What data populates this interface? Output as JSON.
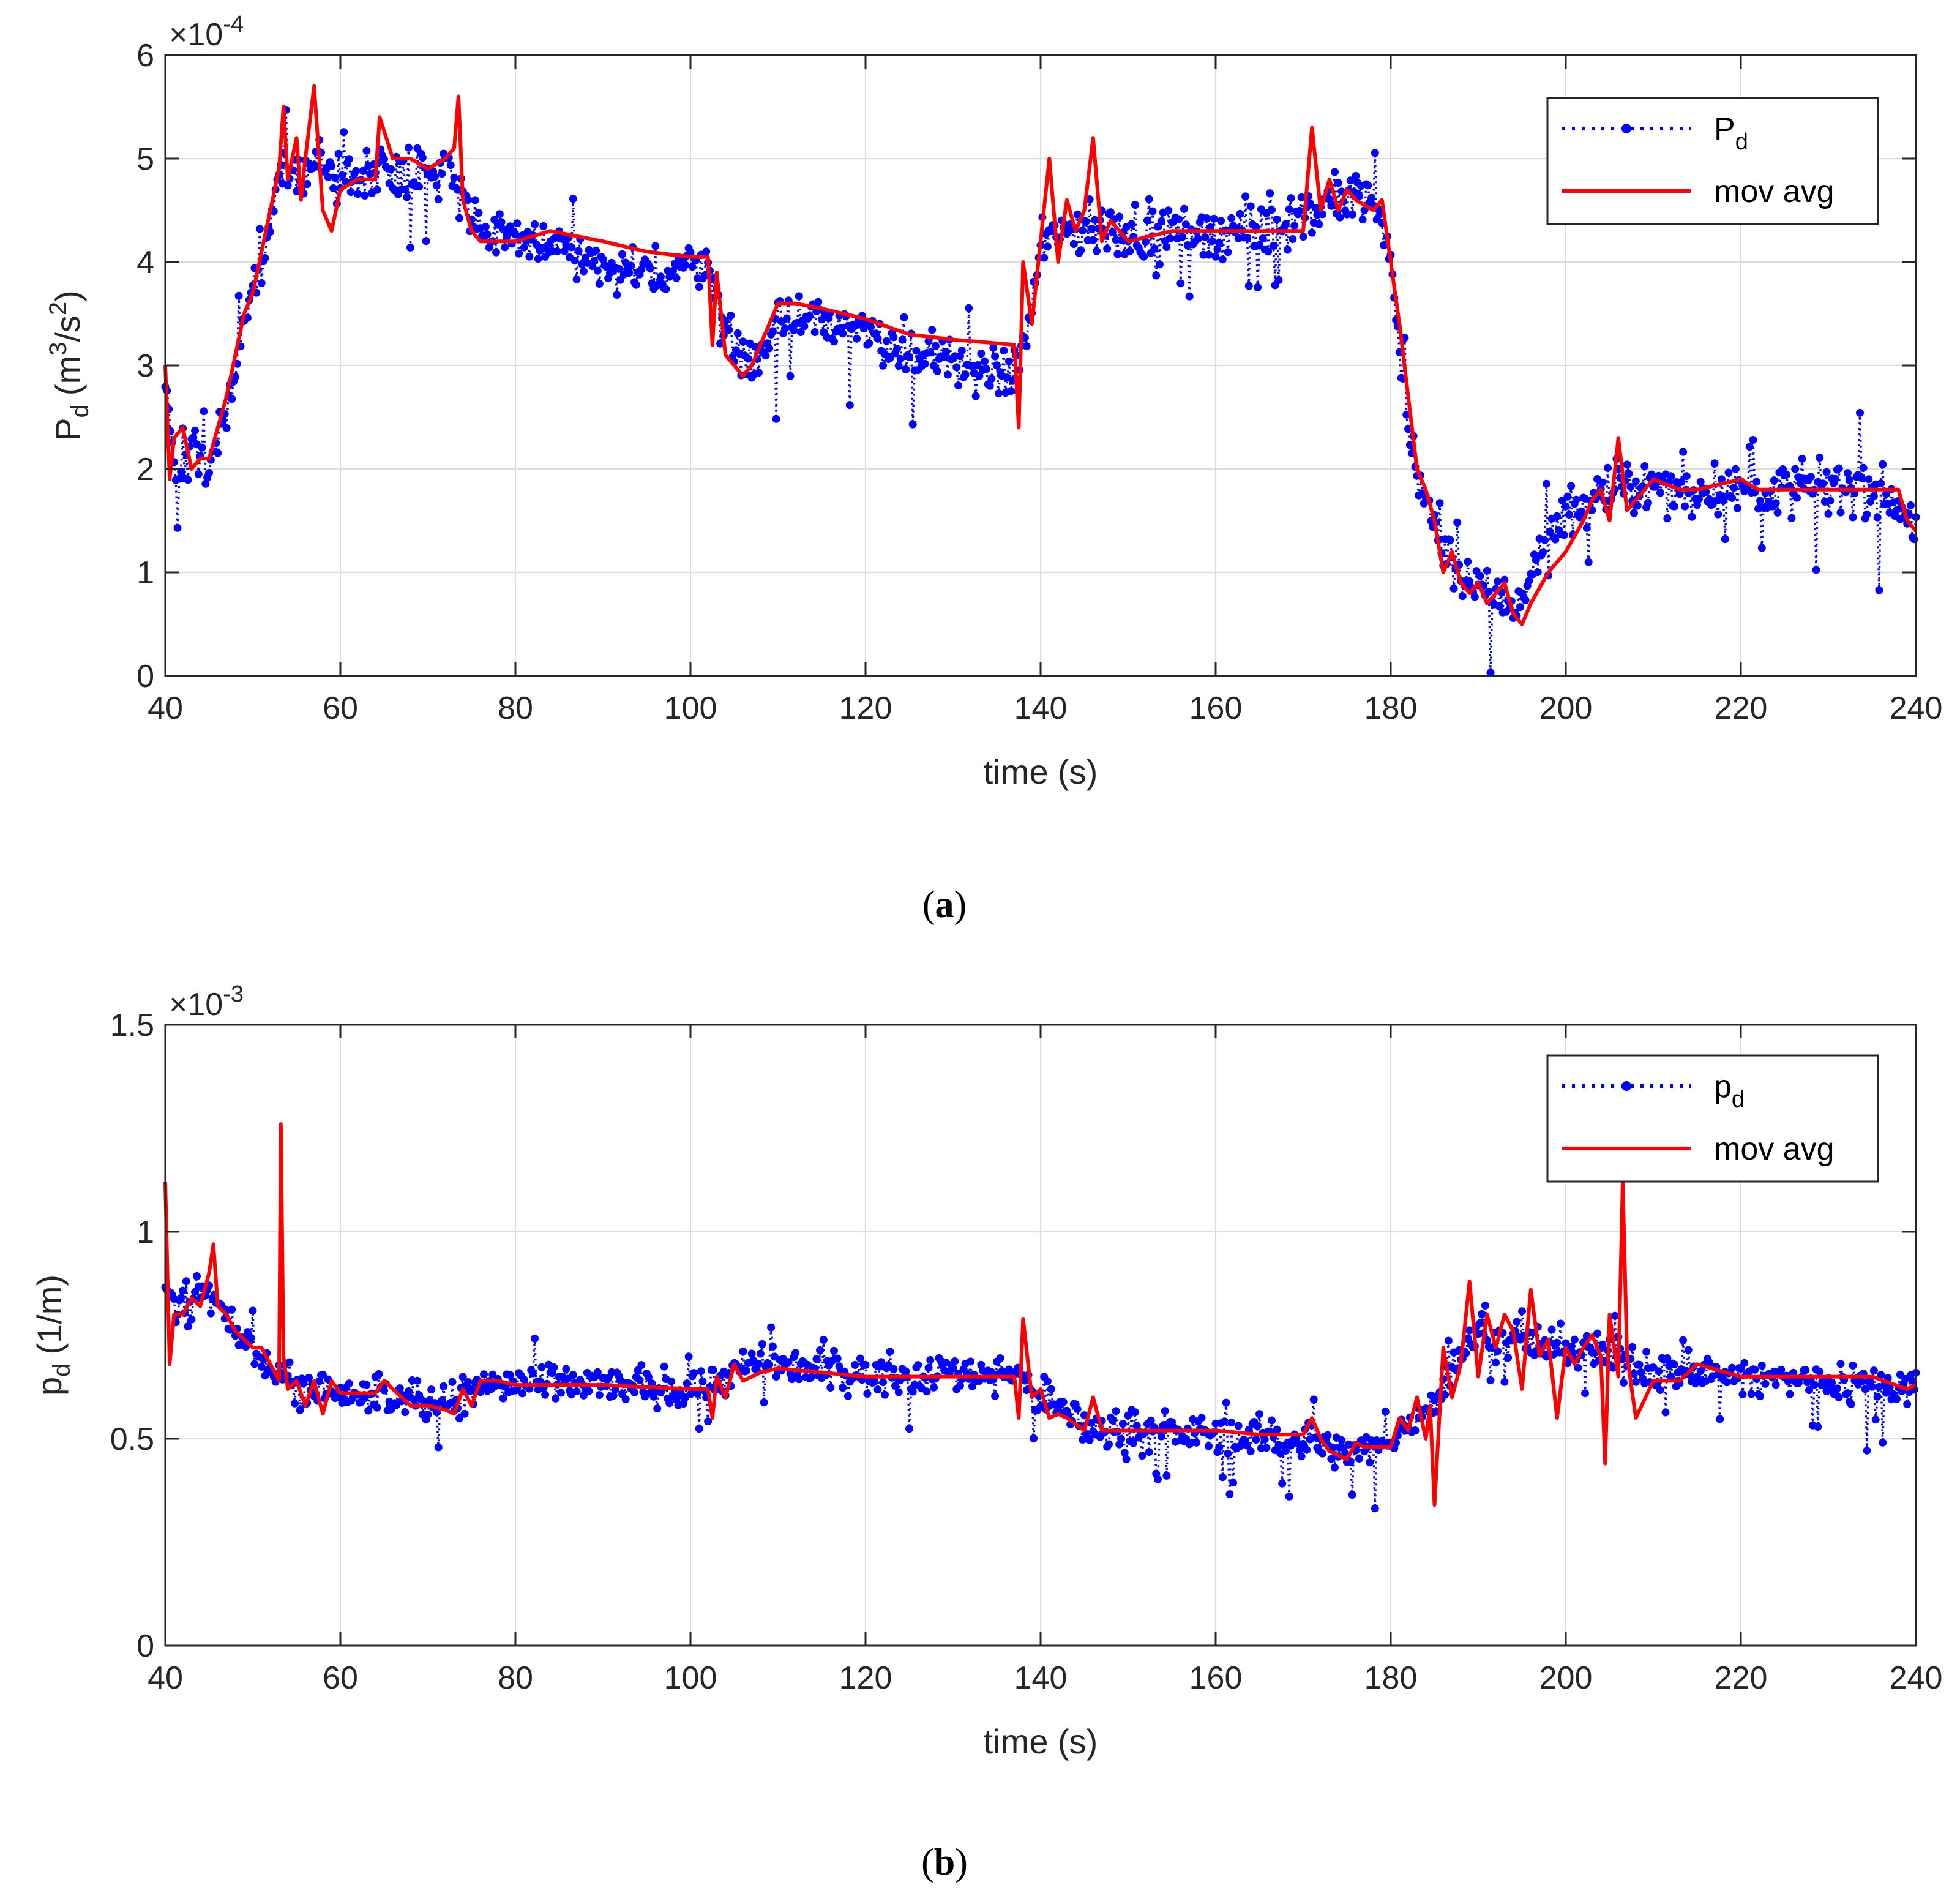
{
  "figure_colors": {
    "primary_series": "#0000ff",
    "moving_average": "#ff0000",
    "axis": "#262626",
    "grid": "#dcdcdc"
  },
  "chart_data": [
    {
      "type": "line",
      "panel": "a",
      "caption_label": "a",
      "title": "",
      "xlabel": "time (s)",
      "ylabel_main": "P",
      "ylabel_sub": "d",
      "ylabel_unit_open": "(m",
      "ylabel_unit_sup1": "3",
      "ylabel_unit_mid": "/s",
      "ylabel_unit_sup2": "2",
      "ylabel_unit_close": ")",
      "exponent_base": "×10",
      "exponent_power": "-4",
      "xlim": [
        40,
        240
      ],
      "ylim": [
        0,
        6
      ],
      "xticks": [
        40,
        60,
        80,
        100,
        120,
        140,
        160,
        180,
        200,
        220,
        240
      ],
      "yticks": [
        0,
        1,
        2,
        3,
        4,
        5,
        6
      ],
      "ytick_labels": [
        "0",
        "1",
        "2",
        "3",
        "4",
        "5",
        "6"
      ],
      "grid": true,
      "legend_position": "top-right",
      "legend": [
        {
          "label_main": "P",
          "label_sub": "d",
          "style": "dotted-markers",
          "color": "#0000ff"
        },
        {
          "label_main": "mov avg",
          "label_sub": "",
          "style": "solid",
          "color": "#ff0000"
        }
      ],
      "series": [
        {
          "name": "Pd",
          "style": "dotted line with dot markers",
          "color": "#0000ff",
          "noise_amplitude": 0.22,
          "x": [
            40,
            41,
            43,
            45,
            47,
            49,
            51,
            53,
            55,
            57,
            60,
            64,
            68,
            73,
            76,
            80,
            85,
            90,
            95,
            100,
            102,
            104,
            107,
            110,
            115,
            120,
            125,
            130,
            137,
            138,
            140,
            142,
            145,
            150,
            155,
            160,
            165,
            170,
            173,
            178,
            180,
            182,
            185,
            188,
            191,
            194,
            197,
            200,
            203,
            206,
            210,
            215,
            220,
            225,
            230,
            235,
            238,
            240
          ],
          "y": [
            2.7,
            2.1,
            2.2,
            2.0,
            2.6,
            3.4,
            3.9,
            4.8,
            4.9,
            5.0,
            4.8,
            4.9,
            4.9,
            4.9,
            4.3,
            4.2,
            4.2,
            3.9,
            3.9,
            4.0,
            4.0,
            3.3,
            3.0,
            3.4,
            3.5,
            3.3,
            3.1,
            3.0,
            2.9,
            3.1,
            4.1,
            4.3,
            4.3,
            4.3,
            4.3,
            4.3,
            4.3,
            4.4,
            4.6,
            4.6,
            4.0,
            2.3,
            1.4,
            0.9,
            0.8,
            0.7,
            1.1,
            1.6,
            1.7,
            1.8,
            1.8,
            1.8,
            1.8,
            1.8,
            1.8,
            1.8,
            1.7,
            1.4
          ]
        },
        {
          "name": "mov avg",
          "style": "solid",
          "color": "#ff0000",
          "x": [
            40,
            40.5,
            41,
            42,
            43,
            44,
            45,
            46,
            47,
            48,
            49,
            50,
            51,
            52,
            53,
            53.5,
            54,
            55,
            55.5,
            56,
            57,
            58,
            59,
            60,
            62,
            64,
            64.5,
            66,
            68,
            70,
            72,
            73,
            73.5,
            74,
            75,
            76,
            78,
            80,
            84,
            90,
            95,
            100,
            102,
            102.5,
            103,
            104,
            105,
            106,
            107,
            108,
            110,
            112,
            115,
            120,
            125,
            130,
            137,
            137.5,
            138,
            139,
            140,
            141,
            142,
            143,
            144,
            145,
            146,
            147,
            148,
            150,
            155,
            160,
            165,
            170,
            171,
            172,
            173,
            174,
            175,
            176,
            178,
            179,
            180,
            181,
            182,
            183,
            184,
            185,
            186,
            187,
            188,
            189,
            190,
            191,
            192,
            193,
            194,
            195,
            196,
            198,
            200,
            202,
            203,
            204,
            205,
            206,
            207,
            210,
            213,
            215,
            220,
            222,
            225,
            230,
            235,
            238,
            239,
            240
          ],
          "y": [
            3.0,
            1.9,
            2.3,
            2.4,
            2.0,
            2.1,
            2.1,
            2.4,
            2.7,
            3.1,
            3.5,
            3.7,
            4.1,
            4.5,
            4.9,
            5.5,
            4.8,
            5.2,
            4.6,
            5.0,
            5.7,
            4.5,
            4.3,
            4.7,
            4.8,
            4.8,
            5.4,
            5.0,
            5.0,
            4.9,
            5.0,
            5.1,
            5.6,
            4.6,
            4.3,
            4.2,
            4.2,
            4.2,
            4.3,
            4.2,
            4.1,
            4.05,
            4.05,
            3.2,
            3.9,
            3.1,
            3.0,
            2.9,
            3.0,
            3.2,
            3.6,
            3.6,
            3.55,
            3.45,
            3.3,
            3.25,
            3.2,
            2.4,
            4.0,
            3.4,
            4.2,
            5.0,
            4.0,
            4.6,
            4.3,
            4.5,
            5.2,
            4.2,
            4.4,
            4.2,
            4.3,
            4.3,
            4.3,
            4.3,
            5.3,
            4.5,
            4.8,
            4.5,
            4.7,
            4.6,
            4.5,
            4.6,
            4.0,
            3.4,
            2.7,
            2.0,
            1.8,
            1.5,
            1.0,
            1.2,
            0.9,
            0.8,
            0.9,
            0.7,
            0.8,
            0.9,
            0.6,
            0.5,
            0.7,
            1.0,
            1.2,
            1.5,
            1.7,
            1.8,
            1.5,
            2.3,
            1.6,
            1.9,
            1.8,
            1.8,
            1.9,
            1.8,
            1.8,
            1.8,
            1.8,
            1.8,
            1.5,
            1.4
          ]
        }
      ]
    },
    {
      "type": "line",
      "panel": "b",
      "caption_label": "b",
      "title": "",
      "xlabel": "time (s)",
      "ylabel_main": "p",
      "ylabel_sub": "d",
      "ylabel_unit_open": "(1/m)",
      "ylabel_unit_sup1": "",
      "ylabel_unit_mid": "",
      "ylabel_unit_sup2": "",
      "ylabel_unit_close": "",
      "exponent_base": "×10",
      "exponent_power": "-3",
      "xlim": [
        40,
        240
      ],
      "ylim": [
        0,
        1.5
      ],
      "xticks": [
        40,
        60,
        80,
        100,
        120,
        140,
        160,
        180,
        200,
        220,
        240
      ],
      "yticks": [
        0,
        0.5,
        1,
        1.5
      ],
      "ytick_labels": [
        "0",
        "0.5",
        "1",
        "1.5"
      ],
      "grid": true,
      "legend_position": "top-right",
      "legend": [
        {
          "label_main": "p",
          "label_sub": "d",
          "style": "dotted-markers",
          "color": "#0000ff"
        },
        {
          "label_main": "mov avg",
          "label_sub": "",
          "style": "solid",
          "color": "#ff0000"
        }
      ],
      "series": [
        {
          "name": "pd",
          "style": "dotted line with dot markers",
          "color": "#0000ff",
          "noise_amplitude": 0.04,
          "x": [
            40,
            42,
            45,
            48,
            50,
            53,
            55,
            60,
            65,
            70,
            73,
            76,
            80,
            90,
            100,
            103,
            106,
            110,
            120,
            130,
            137,
            140,
            145,
            150,
            160,
            170,
            175,
            180,
            185,
            190,
            195,
            200,
            205,
            210,
            215,
            220,
            230,
            240
          ],
          "y": [
            0.85,
            0.82,
            0.85,
            0.76,
            0.72,
            0.65,
            0.63,
            0.61,
            0.61,
            0.58,
            0.59,
            0.63,
            0.63,
            0.63,
            0.62,
            0.64,
            0.67,
            0.68,
            0.65,
            0.66,
            0.66,
            0.6,
            0.53,
            0.52,
            0.51,
            0.5,
            0.46,
            0.49,
            0.6,
            0.76,
            0.73,
            0.72,
            0.7,
            0.66,
            0.66,
            0.65,
            0.64,
            0.63
          ]
        },
        {
          "name": "mov avg",
          "style": "solid",
          "color": "#ff0000",
          "x": [
            40,
            40.5,
            41,
            42,
            43,
            44,
            45,
            45.5,
            46,
            47,
            48,
            49,
            50,
            51,
            52,
            53,
            53.2,
            53.5,
            54,
            55,
            56,
            57,
            58,
            59,
            60,
            64,
            65,
            68,
            70,
            72,
            73,
            74,
            75,
            76,
            78,
            80,
            90,
            100,
            102,
            102.5,
            103,
            104,
            105,
            106,
            108,
            110,
            115,
            120,
            125,
            130,
            137,
            137.5,
            138,
            139,
            140,
            141,
            142,
            143,
            145,
            146,
            147,
            150,
            155,
            160,
            165,
            170,
            171,
            172,
            173,
            174,
            175,
            176,
            177,
            178,
            179,
            180,
            181,
            182,
            183,
            184,
            184.5,
            185,
            186,
            187,
            188,
            189,
            190,
            191,
            192,
            193,
            194,
            195,
            196,
            197,
            198,
            199,
            200,
            201,
            202,
            203,
            204,
            204.5,
            205,
            206,
            206.5,
            207,
            208,
            210,
            213,
            215,
            220,
            225,
            230,
            235,
            239,
            240
          ],
          "y": [
            1.12,
            0.68,
            0.8,
            0.8,
            0.84,
            0.82,
            0.9,
            0.97,
            0.82,
            0.8,
            0.76,
            0.74,
            0.72,
            0.72,
            0.68,
            0.64,
            1.26,
            0.7,
            0.62,
            0.64,
            0.58,
            0.64,
            0.56,
            0.64,
            0.61,
            0.61,
            0.64,
            0.58,
            0.58,
            0.57,
            0.56,
            0.62,
            0.58,
            0.64,
            0.64,
            0.63,
            0.63,
            0.62,
            0.62,
            0.55,
            0.65,
            0.6,
            0.68,
            0.64,
            0.66,
            0.67,
            0.66,
            0.65,
            0.65,
            0.65,
            0.65,
            0.55,
            0.79,
            0.6,
            0.62,
            0.55,
            0.56,
            0.55,
            0.52,
            0.6,
            0.52,
            0.52,
            0.52,
            0.52,
            0.51,
            0.51,
            0.55,
            0.5,
            0.47,
            0.46,
            0.45,
            0.49,
            0.48,
            0.48,
            0.48,
            0.48,
            0.55,
            0.52,
            0.6,
            0.5,
            0.58,
            0.34,
            0.72,
            0.6,
            0.68,
            0.88,
            0.65,
            0.8,
            0.72,
            0.8,
            0.76,
            0.62,
            0.86,
            0.7,
            0.74,
            0.55,
            0.72,
            0.68,
            0.72,
            0.75,
            0.7,
            0.44,
            0.8,
            0.65,
            1.12,
            0.7,
            0.55,
            0.64,
            0.64,
            0.68,
            0.65,
            0.65,
            0.65,
            0.65,
            0.62,
            0.63
          ]
        }
      ]
    }
  ]
}
